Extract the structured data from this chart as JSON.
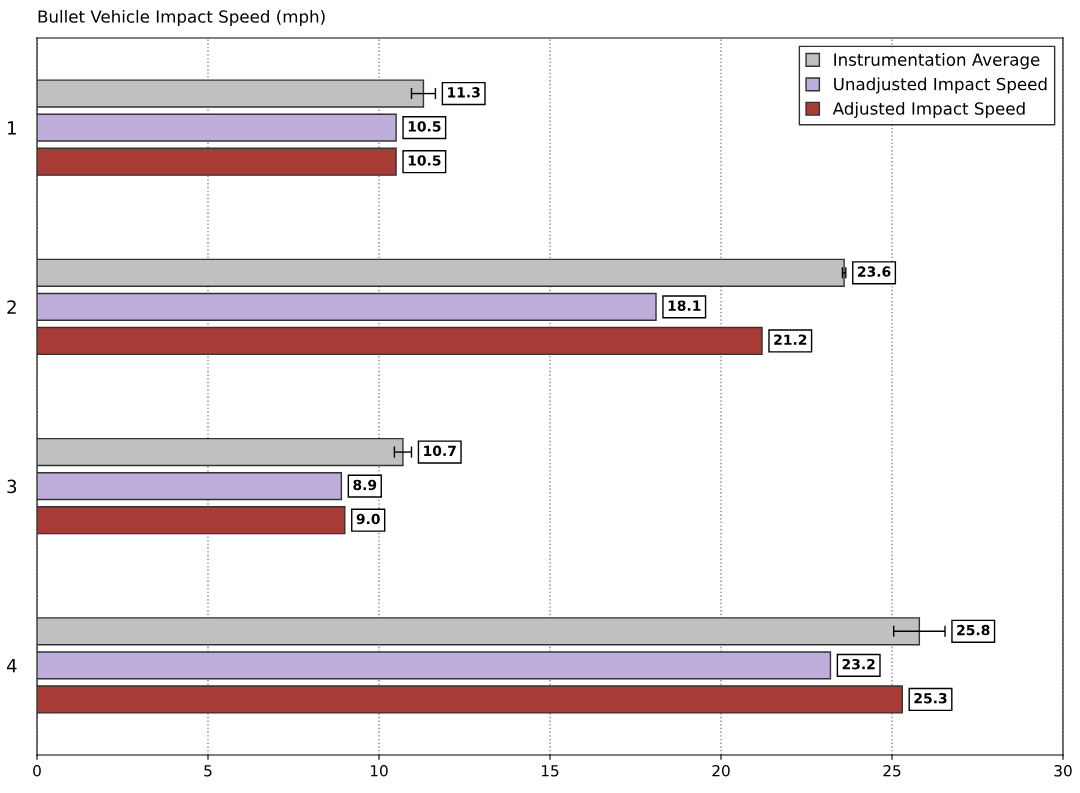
{
  "chart_data": {
    "type": "bar",
    "orientation": "horizontal",
    "title": "Bullet Vehicle Impact Speed (mph)",
    "categories": [
      "1",
      "2",
      "3",
      "4"
    ],
    "series": [
      {
        "name": "Instrumentation Average",
        "color": "#c0c0c0",
        "values": [
          11.3,
          23.6,
          10.7,
          25.8
        ],
        "value_labels": [
          "11.3",
          "23.6",
          "10.7",
          "25.8"
        ],
        "errors": [
          0.35,
          0.05,
          0.25,
          0.75
        ]
      },
      {
        "name": "Unadjusted Impact Speed",
        "color": "#bfaedb",
        "values": [
          10.5,
          18.1,
          8.9,
          23.2
        ],
        "value_labels": [
          "10.5",
          "18.1",
          "8.9",
          "23.2"
        ]
      },
      {
        "name": "Adjusted Impact Speed",
        "color": "#a93b36",
        "values": [
          10.5,
          21.2,
          9.0,
          25.3
        ],
        "value_labels": [
          "10.5",
          "21.2",
          "9.0",
          "25.3"
        ]
      }
    ],
    "xlim": [
      0,
      30
    ],
    "xticks": [
      0,
      5,
      10,
      15,
      20,
      25,
      30
    ],
    "grid": "x",
    "legend": "top right"
  }
}
